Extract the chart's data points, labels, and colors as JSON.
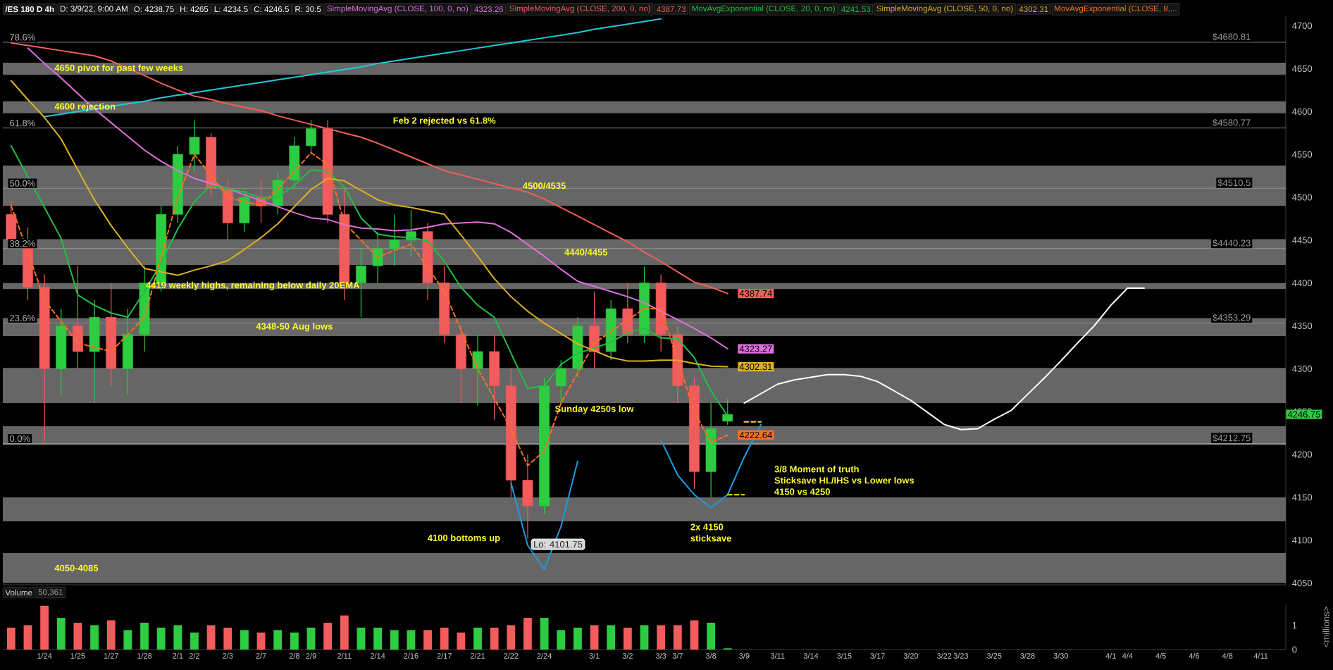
{
  "chart_data": [
    {
      "type": "candlestick",
      "title": "/ES 180 D 4h",
      "categories": [
        null,
        null,
        "1/24",
        null,
        "1/25",
        null,
        "1/27",
        null,
        "1/28",
        null,
        "2/1",
        "2/2",
        null,
        "2/3",
        null,
        "2/7",
        null,
        "2/8",
        "2/9",
        null,
        "2/11",
        null,
        "2/14",
        null,
        "2/16",
        null,
        "2/17",
        null,
        "2/21",
        null,
        "2/22",
        null,
        "2/24",
        null,
        null,
        "3/1",
        null,
        "3/2",
        null,
        "3/3",
        "3/7",
        null,
        "3/8",
        null,
        "3/9",
        null,
        "3/11",
        null,
        "3/14",
        null,
        "3/15",
        null,
        "3/17",
        null,
        "3/20",
        null,
        "3/22",
        "3/23",
        null,
        "3/25",
        null,
        "3/28",
        null,
        "3/30",
        null,
        null,
        "4/1",
        "4/4",
        null,
        "4/5",
        null,
        "4/6",
        null,
        "4/8",
        null,
        "4/11",
        null
      ],
      "ohlc": [
        [
          4480,
          4495,
          4440,
          4450
        ],
        [
          4450,
          4465,
          4380,
          4395
        ],
        [
          4395,
          4410,
          4212.75,
          4300
        ],
        [
          4300,
          4370,
          4270,
          4350
        ],
        [
          4350,
          4420,
          4300,
          4320
        ],
        [
          4320,
          4380,
          4260,
          4360
        ],
        [
          4360,
          4400,
          4280,
          4300
        ],
        [
          4300,
          4370,
          4270,
          4340
        ],
        [
          4340,
          4420,
          4320,
          4400
        ],
        [
          4400,
          4490,
          4390,
          4480
        ],
        [
          4480,
          4560,
          4470,
          4550
        ],
        [
          4550,
          4590,
          4530,
          4570
        ],
        [
          4570,
          4575,
          4500,
          4510
        ],
        [
          4510,
          4520,
          4450,
          4470
        ],
        [
          4470,
          4510,
          4460,
          4500
        ],
        [
          4500,
          4520,
          4470,
          4490
        ],
        [
          4490,
          4530,
          4480,
          4520
        ],
        [
          4520,
          4570,
          4510,
          4560
        ],
        [
          4560,
          4590,
          4550,
          4580
        ],
        [
          4580,
          4590,
          4470,
          4480
        ],
        [
          4480,
          4510,
          4380,
          4400
        ],
        [
          4400,
          4440,
          4360,
          4420
        ],
        [
          4420,
          4460,
          4400,
          4440
        ],
        [
          4440,
          4480,
          4420,
          4450
        ],
        [
          4450,
          4485,
          4430,
          4460
        ],
        [
          4460,
          4470,
          4380,
          4400
        ],
        [
          4400,
          4420,
          4330,
          4340
        ],
        [
          4340,
          4350,
          4260,
          4300
        ],
        [
          4300,
          4340,
          4257,
          4320
        ],
        [
          4320,
          4340,
          4240,
          4280
        ],
        [
          4280,
          4300,
          4150,
          4170
        ],
        [
          4170,
          4200,
          4101.75,
          4140
        ],
        [
          4140,
          4290,
          4130,
          4280
        ],
        [
          4280,
          4310,
          4260,
          4300
        ],
        [
          4300,
          4360,
          4290,
          4350
        ],
        [
          4350,
          4390,
          4300,
          4320
        ],
        [
          4320,
          4380,
          4310,
          4370
        ],
        [
          4370,
          4400,
          4330,
          4340
        ],
        [
          4340,
          4419,
          4330,
          4400
        ],
        [
          4400,
          4410,
          4320,
          4340
        ],
        [
          4340,
          4350,
          4260,
          4280
        ],
        [
          4280,
          4290,
          4160,
          4180
        ],
        [
          4180,
          4260,
          4150,
          4230
        ],
        [
          4238.75,
          4265,
          4234.5,
          4246.75
        ],
        null,
        null,
        null,
        null,
        null,
        null,
        null,
        null,
        null,
        null,
        null,
        null,
        null,
        null,
        null,
        null,
        null,
        null,
        null,
        null,
        null,
        null,
        null,
        null,
        null,
        null,
        null,
        null,
        null,
        null,
        null,
        null,
        null
      ],
      "colors": [
        "#f25c5c",
        "#f25c5c",
        "#f25c5c",
        "#2ecc40",
        "#f25c5c",
        "#2ecc40",
        "#f25c5c",
        "#2ecc40",
        "#2ecc40",
        "#2ecc40",
        "#2ecc40",
        "#2ecc40",
        "#f25c5c",
        "#f25c5c",
        "#2ecc40",
        "#f25c5c",
        "#2ecc40",
        "#2ecc40",
        "#2ecc40",
        "#f25c5c",
        "#f25c5c",
        "#2ecc40",
        "#2ecc40",
        "#2ecc40",
        "#2ecc40",
        "#f25c5c",
        "#f25c5c",
        "#f25c5c",
        "#2ecc40",
        "#f25c5c",
        "#f25c5c",
        "#f25c5c",
        "#2ecc40",
        "#2ecc40",
        "#2ecc40",
        "#f25c5c",
        "#2ecc40",
        "#f25c5c",
        "#2ecc40",
        "#f25c5c",
        "#f25c5c",
        "#f25c5c",
        "#2ecc40",
        "#2ecc40",
        null,
        null,
        null,
        null,
        null,
        null,
        null,
        null,
        null,
        null,
        null,
        null,
        null,
        null,
        null,
        null,
        null,
        null,
        null,
        null,
        null,
        null,
        null,
        null,
        null,
        null,
        null,
        null,
        null,
        null,
        null,
        null,
        null
      ],
      "value_labels": [
        null,
        null,
        null,
        null,
        null,
        null,
        null,
        null,
        null,
        null,
        null,
        null,
        null,
        null,
        null,
        null,
        null,
        null,
        null,
        null,
        null,
        null,
        null,
        null,
        null,
        null,
        null,
        null,
        null,
        null,
        null,
        null,
        null,
        null,
        null,
        null,
        null,
        null,
        null,
        null,
        null,
        null,
        null,
        "4246.75",
        null,
        null,
        null,
        null,
        null,
        null,
        null,
        null,
        null,
        null,
        null,
        null,
        null,
        null,
        null,
        null,
        null,
        null,
        null,
        null,
        null,
        null,
        null,
        null,
        null,
        null,
        null,
        null,
        null,
        null,
        null,
        null,
        null
      ],
      "series": [
        {
          "type": "line",
          "name": "SimpleMovingAvg (CLOSE, 100, 0, no)",
          "color": "#e070e0",
          "values": [
            null,
            4674,
            4656,
            4639,
            4621,
            4603,
            4587,
            4571,
            4555,
            4542,
            4531,
            4522,
            4516,
            4510,
            4503,
            4496,
            4489,
            4482,
            4476,
            4474,
            4468,
            4464,
            4463,
            4461,
            4462,
            4465,
            4469,
            4470,
            4471,
            4469,
            4459,
            4445,
            4431,
            4416,
            4402,
            4396,
            4390,
            4384,
            4377,
            4367,
            4357,
            4347,
            4336,
            4323.27,
            null,
            null,
            null,
            null,
            null,
            null,
            null,
            null,
            null,
            null,
            null,
            null,
            null,
            null,
            null,
            null,
            null,
            null,
            null,
            null,
            null,
            null,
            null,
            null,
            null,
            null,
            null,
            null,
            null,
            null,
            null,
            null,
            null
          ],
          "value_labels": [
            null,
            null,
            null,
            null,
            null,
            null,
            null,
            null,
            null,
            null,
            null,
            null,
            null,
            null,
            null,
            null,
            null,
            null,
            null,
            null,
            null,
            null,
            null,
            null,
            null,
            null,
            null,
            null,
            null,
            null,
            null,
            null,
            null,
            null,
            null,
            null,
            null,
            null,
            null,
            null,
            null,
            null,
            null,
            "4323.27",
            null,
            null,
            null,
            null,
            null,
            null,
            null,
            null,
            null,
            null,
            null,
            null,
            null,
            null,
            null,
            null,
            null,
            null,
            null,
            null,
            null,
            null,
            null,
            null,
            null,
            null,
            null,
            null,
            null,
            null,
            null,
            null,
            null
          ]
        },
        {
          "type": "line",
          "name": "SimpleMovingAvg (CLOSE, 200, 0, no)",
          "color": "#f0605a",
          "values": [
            4680,
            4677,
            4674,
            4671,
            4668,
            4665,
            4659,
            4650,
            4642,
            4633,
            4625,
            4618,
            4614,
            4609,
            4605,
            4601,
            4595,
            4590,
            4585,
            4580,
            4575,
            4570,
            4563,
            4555,
            4547,
            4539,
            4531,
            4526,
            4521,
            4516,
            4511,
            4506,
            4498,
            4488,
            4478,
            4468,
            4458,
            4448,
            4436,
            4425,
            4413,
            4401,
            4395,
            4387.74,
            null,
            null,
            null,
            null,
            null,
            null,
            null,
            null,
            null,
            null,
            null,
            null,
            null,
            null,
            null,
            null,
            null,
            null,
            null,
            null,
            null,
            null,
            null,
            null,
            null,
            null,
            null,
            null,
            null,
            null,
            null,
            null,
            null
          ],
          "value_labels": [
            null,
            null,
            null,
            null,
            null,
            null,
            null,
            null,
            null,
            null,
            null,
            null,
            null,
            null,
            null,
            null,
            null,
            null,
            null,
            null,
            null,
            null,
            null,
            null,
            null,
            null,
            null,
            null,
            null,
            null,
            null,
            null,
            null,
            null,
            null,
            null,
            null,
            null,
            null,
            null,
            null,
            null,
            null,
            "4387.74",
            null,
            null,
            null,
            null,
            null,
            null,
            null,
            null,
            null,
            null,
            null,
            null,
            null,
            null,
            null,
            null,
            null,
            null,
            null,
            null,
            null,
            null,
            null,
            null,
            null,
            null,
            null,
            null,
            null,
            null,
            null,
            null,
            null
          ]
        },
        {
          "type": "line",
          "name": "MovAvgExponential (CLOSE, 20, 0, no)",
          "color": "#20c040",
          "values": [
            4560,
            4524,
            4488,
            4452,
            4386,
            4374,
            4365,
            4360,
            4390,
            4423,
            4463,
            4495,
            4514,
            4510,
            4506,
            4499,
            4500,
            4514,
            4532,
            4530,
            4512,
            4476,
            4457,
            4454,
            4453,
            4449,
            4425,
            4395,
            4374,
            4360,
            4318,
            4277,
            4280,
            4305,
            4318,
            4324,
            4331,
            4342,
            4347,
            4336,
            4335,
            4313,
            4274,
            4245,
            null,
            null,
            null,
            null,
            null,
            null,
            null,
            null,
            null,
            null,
            null,
            null,
            null,
            null,
            null,
            null,
            null,
            null,
            null,
            null,
            null,
            null,
            null,
            null,
            null,
            null,
            null,
            null,
            null,
            null,
            null,
            null,
            null
          ]
        },
        {
          "type": "line",
          "name": "SimpleMovingAvg (CLOSE, 50, 0, no)",
          "color": "#e0b020",
          "values": [
            4636,
            4614,
            4593,
            4568,
            4532,
            4497,
            4467,
            4441,
            4417,
            4413,
            4409,
            4415,
            4420,
            4426,
            4439,
            4453,
            4469,
            4489,
            4509,
            4522,
            4519,
            4508,
            4497,
            4491,
            4488,
            4484,
            4480,
            4456,
            4431,
            4405,
            4384,
            4367,
            4353,
            4341,
            4329,
            4321,
            4313,
            4309,
            4309,
            4310,
            4310,
            4306,
            4303,
            4302.31,
            null,
            null,
            null,
            null,
            null,
            null,
            null,
            null,
            null,
            null,
            null,
            null,
            null,
            null,
            null,
            null,
            null,
            null,
            null,
            null,
            null,
            null,
            null,
            null,
            null,
            null,
            null,
            null,
            null,
            null,
            null,
            null,
            null
          ],
          "value_labels": [
            null,
            null,
            null,
            null,
            null,
            null,
            null,
            null,
            null,
            null,
            null,
            null,
            null,
            null,
            null,
            null,
            null,
            null,
            null,
            null,
            null,
            null,
            null,
            null,
            null,
            null,
            null,
            null,
            null,
            null,
            null,
            null,
            null,
            null,
            null,
            null,
            null,
            null,
            null,
            null,
            null,
            null,
            null,
            "4302.31",
            null,
            null,
            null,
            null,
            null,
            null,
            null,
            null,
            null,
            null,
            null,
            null,
            null,
            null,
            null,
            null,
            null,
            null,
            null,
            null,
            null,
            null,
            null,
            null,
            null,
            null,
            null,
            null,
            null,
            null,
            null,
            null,
            null
          ]
        },
        {
          "type": "line",
          "name": "MovAvgExponential (CLOSE, 8,...",
          "color": "#ff7020",
          "line_style": "dashed",
          "values": [
            4490,
            4436,
            4380,
            4355,
            4330,
            4325,
            4320,
            4340,
            4360,
            4430,
            4500,
            4550,
            4525,
            4500,
            4495,
            4490,
            4510,
            4530,
            4552,
            4538,
            4470,
            4450,
            4430,
            4438,
            4445,
            4418,
            4390,
            4345,
            4300,
            4265,
            4230,
            4187,
            4204,
            4260,
            4295,
            4330,
            4343,
            4357,
            4370,
            4370,
            4310,
            4250,
            4214,
            4222.64,
            null,
            null,
            null,
            null,
            null,
            null,
            null,
            null,
            null,
            null,
            null,
            null,
            null,
            null,
            null,
            null,
            null,
            null,
            null,
            null,
            null,
            null,
            null,
            null,
            null,
            null,
            null,
            null,
            null,
            null,
            null,
            null,
            null
          ],
          "value_labels": [
            null,
            null,
            null,
            null,
            null,
            null,
            null,
            null,
            null,
            null,
            null,
            null,
            null,
            null,
            null,
            null,
            null,
            null,
            null,
            null,
            null,
            null,
            null,
            null,
            null,
            null,
            null,
            null,
            null,
            null,
            null,
            null,
            null,
            null,
            null,
            null,
            null,
            null,
            null,
            null,
            null,
            null,
            null,
            "4222.64",
            null,
            null,
            null,
            null,
            null,
            null,
            null,
            null,
            null,
            null,
            null,
            null,
            null,
            null,
            null,
            null,
            null,
            null,
            null,
            null,
            null,
            null,
            null,
            null,
            null,
            null,
            null,
            null,
            null,
            null,
            null,
            null,
            null
          ]
        },
        {
          "type": "line",
          "color": "#1fc8d8",
          "values": [
            null,
            null,
            4594,
            4597,
            4600,
            4603,
            4606,
            4609,
            4612,
            4616,
            4619,
            4622,
            4625,
            4628,
            4631,
            4634,
            4637,
            4640,
            4643,
            4646,
            4649,
            4652,
            4656,
            4659,
            4662,
            4665,
            4668,
            4671,
            4674,
            4677,
            4680,
            4683,
            4686,
            4689,
            4692,
            4696,
            4699,
            4702,
            4705,
            4708,
            null,
            null,
            null,
            null,
            null,
            null,
            null,
            null,
            null,
            null,
            null,
            null,
            null,
            null,
            null,
            null,
            null,
            null,
            null,
            null,
            null,
            null,
            null,
            null,
            null,
            null,
            null,
            null,
            null,
            null,
            null,
            null,
            null,
            null,
            null,
            null,
            null
          ]
        },
        {
          "type": "line",
          "color": "#1e9be0",
          "values": [
            null,
            null,
            null,
            null,
            null,
            null,
            null,
            null,
            null,
            null,
            null,
            null,
            null,
            null,
            null,
            null,
            null,
            null,
            null,
            null,
            null,
            null,
            null,
            null,
            null,
            null,
            null,
            null,
            null,
            null,
            4167,
            4094,
            4066,
            4116,
            4192,
            null,
            null,
            null,
            null,
            null,
            null,
            null,
            null,
            null,
            null,
            null,
            null,
            null,
            null,
            null,
            null,
            null,
            null,
            null,
            null,
            null,
            null,
            null,
            null,
            null,
            null,
            null,
            null,
            null,
            null,
            null,
            null,
            null,
            null,
            null,
            null,
            null,
            null,
            null,
            null,
            null,
            null
          ]
        },
        {
          "type": "line",
          "color": "#1e9be0",
          "values": [
            null,
            null,
            null,
            null,
            null,
            null,
            null,
            null,
            null,
            null,
            null,
            null,
            null,
            null,
            null,
            null,
            null,
            null,
            null,
            null,
            null,
            null,
            null,
            null,
            null,
            null,
            null,
            null,
            null,
            null,
            null,
            null,
            null,
            null,
            null,
            null,
            null,
            null,
            null,
            4217,
            4176,
            4153,
            4138,
            4153,
            4197,
            4235,
            null,
            null,
            null,
            null,
            null,
            null,
            null,
            null,
            null,
            null,
            null,
            null,
            null,
            null,
            null,
            null,
            null,
            null,
            null,
            null,
            null,
            null,
            null,
            null,
            null,
            null,
            null,
            null,
            null,
            null,
            null
          ]
        },
        {
          "type": "line",
          "color": "#ffffff",
          "values": [
            null,
            null,
            null,
            null,
            null,
            null,
            null,
            null,
            null,
            null,
            null,
            null,
            null,
            null,
            null,
            null,
            null,
            null,
            null,
            null,
            null,
            null,
            null,
            null,
            null,
            null,
            null,
            null,
            null,
            null,
            null,
            null,
            null,
            null,
            null,
            null,
            null,
            null,
            null,
            null,
            null,
            null,
            null,
            null,
            4260,
            4271,
            4282,
            4287,
            4290,
            4293,
            4293,
            4291,
            4285,
            4274,
            4263,
            4249,
            4235,
            4229,
            4230,
            4241,
            4251,
            4270,
            4289,
            4309,
            4330,
            4350,
            4374,
            4394,
            4394,
            null,
            null,
            null,
            null,
            null,
            null,
            null,
            null
          ]
        },
        {
          "type": "line",
          "color": "#ffe000",
          "line_style": "dashed",
          "values": [
            null,
            null,
            null,
            null,
            null,
            null,
            null,
            null,
            null,
            null,
            null,
            null,
            null,
            null,
            null,
            null,
            null,
            null,
            null,
            null,
            null,
            null,
            null,
            null,
            null,
            null,
            null,
            null,
            null,
            null,
            null,
            null,
            null,
            null,
            null,
            null,
            null,
            null,
            null,
            null,
            null,
            null,
            null,
            null,
            4238,
            4238,
            null,
            null,
            null,
            null,
            null,
            null,
            null,
            null,
            null,
            null,
            null,
            null,
            null,
            null,
            null,
            null,
            null,
            null,
            null,
            null,
            null,
            null,
            null,
            null,
            null,
            null,
            null,
            null,
            null,
            null,
            null
          ]
        },
        {
          "type": "line",
          "color": "#ffe000",
          "line_style": "dashed",
          "values": [
            null,
            null,
            null,
            null,
            null,
            null,
            null,
            null,
            null,
            null,
            null,
            null,
            null,
            null,
            null,
            null,
            null,
            null,
            null,
            null,
            null,
            null,
            null,
            null,
            null,
            null,
            null,
            null,
            null,
            null,
            null,
            null,
            null,
            null,
            null,
            null,
            null,
            null,
            null,
            null,
            null,
            null,
            null,
            4153,
            4153,
            null,
            null,
            null,
            null,
            null,
            null,
            null,
            null,
            null,
            null,
            null,
            null,
            null,
            null,
            null,
            null,
            null,
            null,
            null,
            null,
            null,
            null,
            null,
            null,
            null,
            null,
            null,
            null,
            null,
            null,
            null,
            null
          ]
        }
      ],
      "ylim": [
        4048,
        4712
      ],
      "yticks": [
        4050,
        4100,
        4150,
        4200,
        4250,
        4300,
        4350,
        4400,
        4450,
        4500,
        4550,
        4600,
        4650,
        4700
      ],
      "tick_labels": "y",
      "legend": "top",
      "bands": [
        {
          "axis": "y",
          "from": 4643,
          "to": 4657,
          "color": "#666666",
          "label": "4650 pivot for past few weeks"
        },
        {
          "axis": "y",
          "from": 4598,
          "to": 4612,
          "color": "#666666",
          "label": "4600 rejection"
        },
        {
          "axis": "y",
          "from": 4490,
          "to": 4537,
          "color": "#666666",
          "label": "4500/4535"
        },
        {
          "axis": "y",
          "from": 4421,
          "to": 4451,
          "color": "#666666",
          "label": "4440/4455"
        },
        {
          "axis": "y",
          "from": 4393,
          "to": 4400,
          "color": "#666666",
          "label": "4419 weekly highs, remaining below daily 20EMA"
        },
        {
          "axis": "y",
          "from": 4338,
          "to": 4359,
          "color": "#666666",
          "label": "4348-50 Aug lows"
        },
        {
          "axis": "y",
          "from": 4260,
          "to": 4301,
          "color": "#666666"
        },
        {
          "axis": "y",
          "from": 4211,
          "to": 4233,
          "color": "#666666"
        },
        {
          "axis": "y",
          "from": 4122,
          "to": 4150,
          "color": "#666666"
        },
        {
          "axis": "y",
          "from": 4050,
          "to": 4085,
          "color": "#666666",
          "label": "4050-4085"
        }
      ],
      "ref_lines": [
        {
          "axis": "y",
          "value": 4680.81,
          "label": "$4680.81",
          "color": "#a0a0a0"
        },
        {
          "axis": "y",
          "value": 4580.77,
          "label": "$4580.77",
          "color": "#a0a0a0"
        },
        {
          "axis": "y",
          "value": 4510.5,
          "label": "$4510.5",
          "color": "#a0a0a0"
        },
        {
          "axis": "y",
          "value": 4440.23,
          "label": "$4440.23",
          "color": "#a0a0a0"
        },
        {
          "axis": "y",
          "value": 4353.29,
          "label": "$4353.29",
          "color": "#a0a0a0"
        },
        {
          "axis": "y",
          "value": 4212.75,
          "label": "$4212.75",
          "color": "#a0a0a0"
        }
      ],
      "annotations": [
        "D: 3/9/22, 9:00 AM",
        "O: 4238.75",
        "H: 4265",
        "L: 4234.5",
        "C: 4246.5",
        "R: 30.5",
        "4323.26",
        "4387.73",
        "4241.53",
        "4302.31",
        "4100 bottoms up",
        "Lo: 4101.75",
        {
          "text": "78.6%",
          "y": 4680.81
        },
        {
          "text": "61.8%",
          "y": 4580.77
        },
        {
          "text": "50.0%",
          "y": 4510.5
        },
        {
          "text": "38.2%",
          "y": 4440.23
        },
        {
          "text": "23.6%",
          "y": 4353.29
        },
        {
          "text": "0.0%",
          "y": 4212.75
        },
        {
          "text": "Feb 2 rejected vs 61.8%",
          "x": "2/17",
          "y": 4580.77
        },
        {
          "text": "Sunday 4250s low",
          "x": "3/1",
          "y": 4260
        },
        {
          "text": "2x 4150",
          "x": "3/8",
          "y": 4122
        },
        {
          "text": "sticksave",
          "x": "3/8",
          "y": 4122
        },
        {
          "text": "3/8 Moment of truth",
          "x": "3/15",
          "y": 4150
        },
        {
          "text": "Sticksave HL/IHS vs Lower lows",
          "x": "3/15",
          "y": 4150
        },
        {
          "text": "4150 vs 4250",
          "x": "3/15",
          "y": 4150
        }
      ]
    },
    {
      "type": "bar",
      "title": "Volume",
      "subtitle": "50,361",
      "ylabel": "<millions>",
      "categories": [
        null,
        null,
        "1/24",
        null,
        "1/25",
        null,
        "1/27",
        null,
        "1/28",
        null,
        "2/1",
        "2/2",
        null,
        "2/3",
        null,
        "2/7",
        null,
        "2/8",
        "2/9",
        null,
        "2/11",
        null,
        "2/14",
        null,
        "2/16",
        null,
        "2/17",
        null,
        "2/21",
        null,
        "2/22",
        null,
        "2/24",
        null,
        null,
        "3/1",
        null,
        "3/2",
        null,
        "3/3",
        "3/7",
        null,
        "3/8",
        null,
        "3/9",
        null,
        "3/11",
        null,
        "3/14",
        null,
        "3/15",
        null,
        "3/17",
        null,
        "3/20",
        null,
        "3/22",
        "3/23",
        null,
        "3/25",
        null,
        "3/28",
        null,
        "3/30",
        null,
        null,
        "4/1",
        "4/4",
        null,
        "4/5",
        null,
        "4/6",
        null,
        "4/8",
        null,
        "4/11",
        null
      ],
      "values": [
        0.9,
        1.0,
        1.8,
        1.3,
        1.1,
        1.0,
        1.2,
        0.8,
        1.1,
        0.9,
        1.0,
        0.7,
        1.0,
        0.9,
        0.8,
        0.7,
        0.8,
        0.7,
        0.9,
        1.1,
        1.4,
        0.9,
        0.9,
        0.8,
        0.8,
        0.8,
        0.9,
        0.7,
        0.9,
        0.9,
        1.0,
        1.3,
        1.3,
        0.8,
        0.9,
        1.0,
        1.0,
        0.9,
        1.0,
        1.0,
        1.0,
        1.2,
        1.1,
        0.05,
        null,
        null,
        null,
        null,
        null,
        null,
        null,
        null,
        null,
        null,
        null,
        null,
        null,
        null,
        null,
        null,
        null,
        null,
        null,
        null,
        null,
        null,
        null,
        null,
        null,
        null,
        null,
        null,
        null,
        null,
        null,
        null,
        null
      ],
      "colors": [
        "#f25c5c",
        "#f25c5c",
        "#f25c5c",
        "#2ecc40",
        "#f25c5c",
        "#2ecc40",
        "#f25c5c",
        "#2ecc40",
        "#2ecc40",
        "#2ecc40",
        "#2ecc40",
        "#2ecc40",
        "#f25c5c",
        "#f25c5c",
        "#2ecc40",
        "#f25c5c",
        "#2ecc40",
        "#2ecc40",
        "#2ecc40",
        "#f25c5c",
        "#f25c5c",
        "#2ecc40",
        "#2ecc40",
        "#2ecc40",
        "#2ecc40",
        "#f25c5c",
        "#f25c5c",
        "#f25c5c",
        "#2ecc40",
        "#f25c5c",
        "#f25c5c",
        "#f25c5c",
        "#2ecc40",
        "#2ecc40",
        "#2ecc40",
        "#f25c5c",
        "#2ecc40",
        "#f25c5c",
        "#2ecc40",
        "#f25c5c",
        "#f25c5c",
        "#f25c5c",
        "#2ecc40",
        "#2ecc40",
        null,
        null,
        null,
        null,
        null,
        null,
        null,
        null,
        null,
        null,
        null,
        null,
        null,
        null,
        null,
        null,
        null,
        null,
        null,
        null,
        null,
        null,
        null,
        null,
        null,
        null,
        null,
        null,
        null,
        null,
        null,
        null,
        null
      ],
      "ylim": [
        0,
        1.85
      ],
      "yticks": [
        0,
        1
      ]
    }
  ]
}
